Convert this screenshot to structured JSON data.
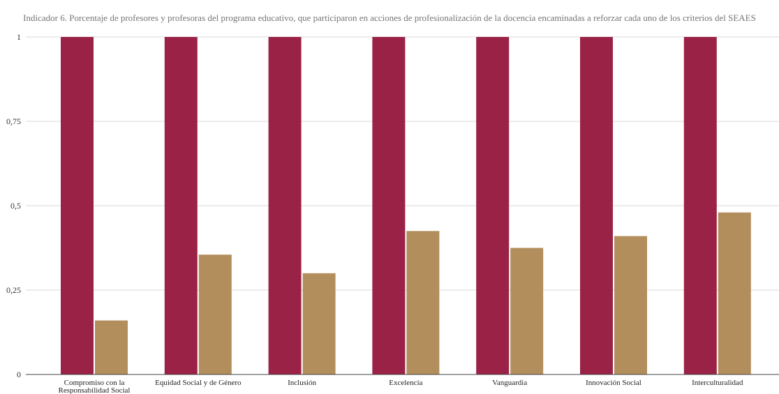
{
  "colors": {
    "series_a": "#9b2247",
    "series_b": "#b28e5c",
    "gridline": "#d9d9d9",
    "axis": "#444444"
  },
  "chart_data": {
    "type": "bar",
    "title": "Indicador 6. Porcentaje de profesores y profesoras del programa educativo, que participaron en acciones de profesionalización de la docencia encaminadas a reforzar cada uno de los criterios del SEAES",
    "categories": [
      [
        "Compromiso con la",
        "Responsabilidad Social"
      ],
      [
        "Equidad Social y de Género"
      ],
      [
        "Inclusión"
      ],
      [
        "Excelencia"
      ],
      [
        "Vanguardia"
      ],
      [
        "Innovación Social"
      ],
      [
        "Interculturalidad"
      ]
    ],
    "series": [
      {
        "values": [
          1,
          1,
          1,
          1,
          1,
          1,
          1
        ]
      },
      {
        "values": [
          0.16,
          0.355,
          0.3,
          0.425,
          0.375,
          0.41,
          0.48
        ]
      }
    ],
    "ylim": [
      0,
      1
    ],
    "yticks": [
      0,
      0.25,
      0.5,
      0.75,
      1
    ],
    "ytick_labels": [
      "0",
      "0,25",
      "0,5",
      "0,75",
      "1"
    ],
    "xlabel": "",
    "ylabel": "",
    "grid": true,
    "legend": "none"
  }
}
